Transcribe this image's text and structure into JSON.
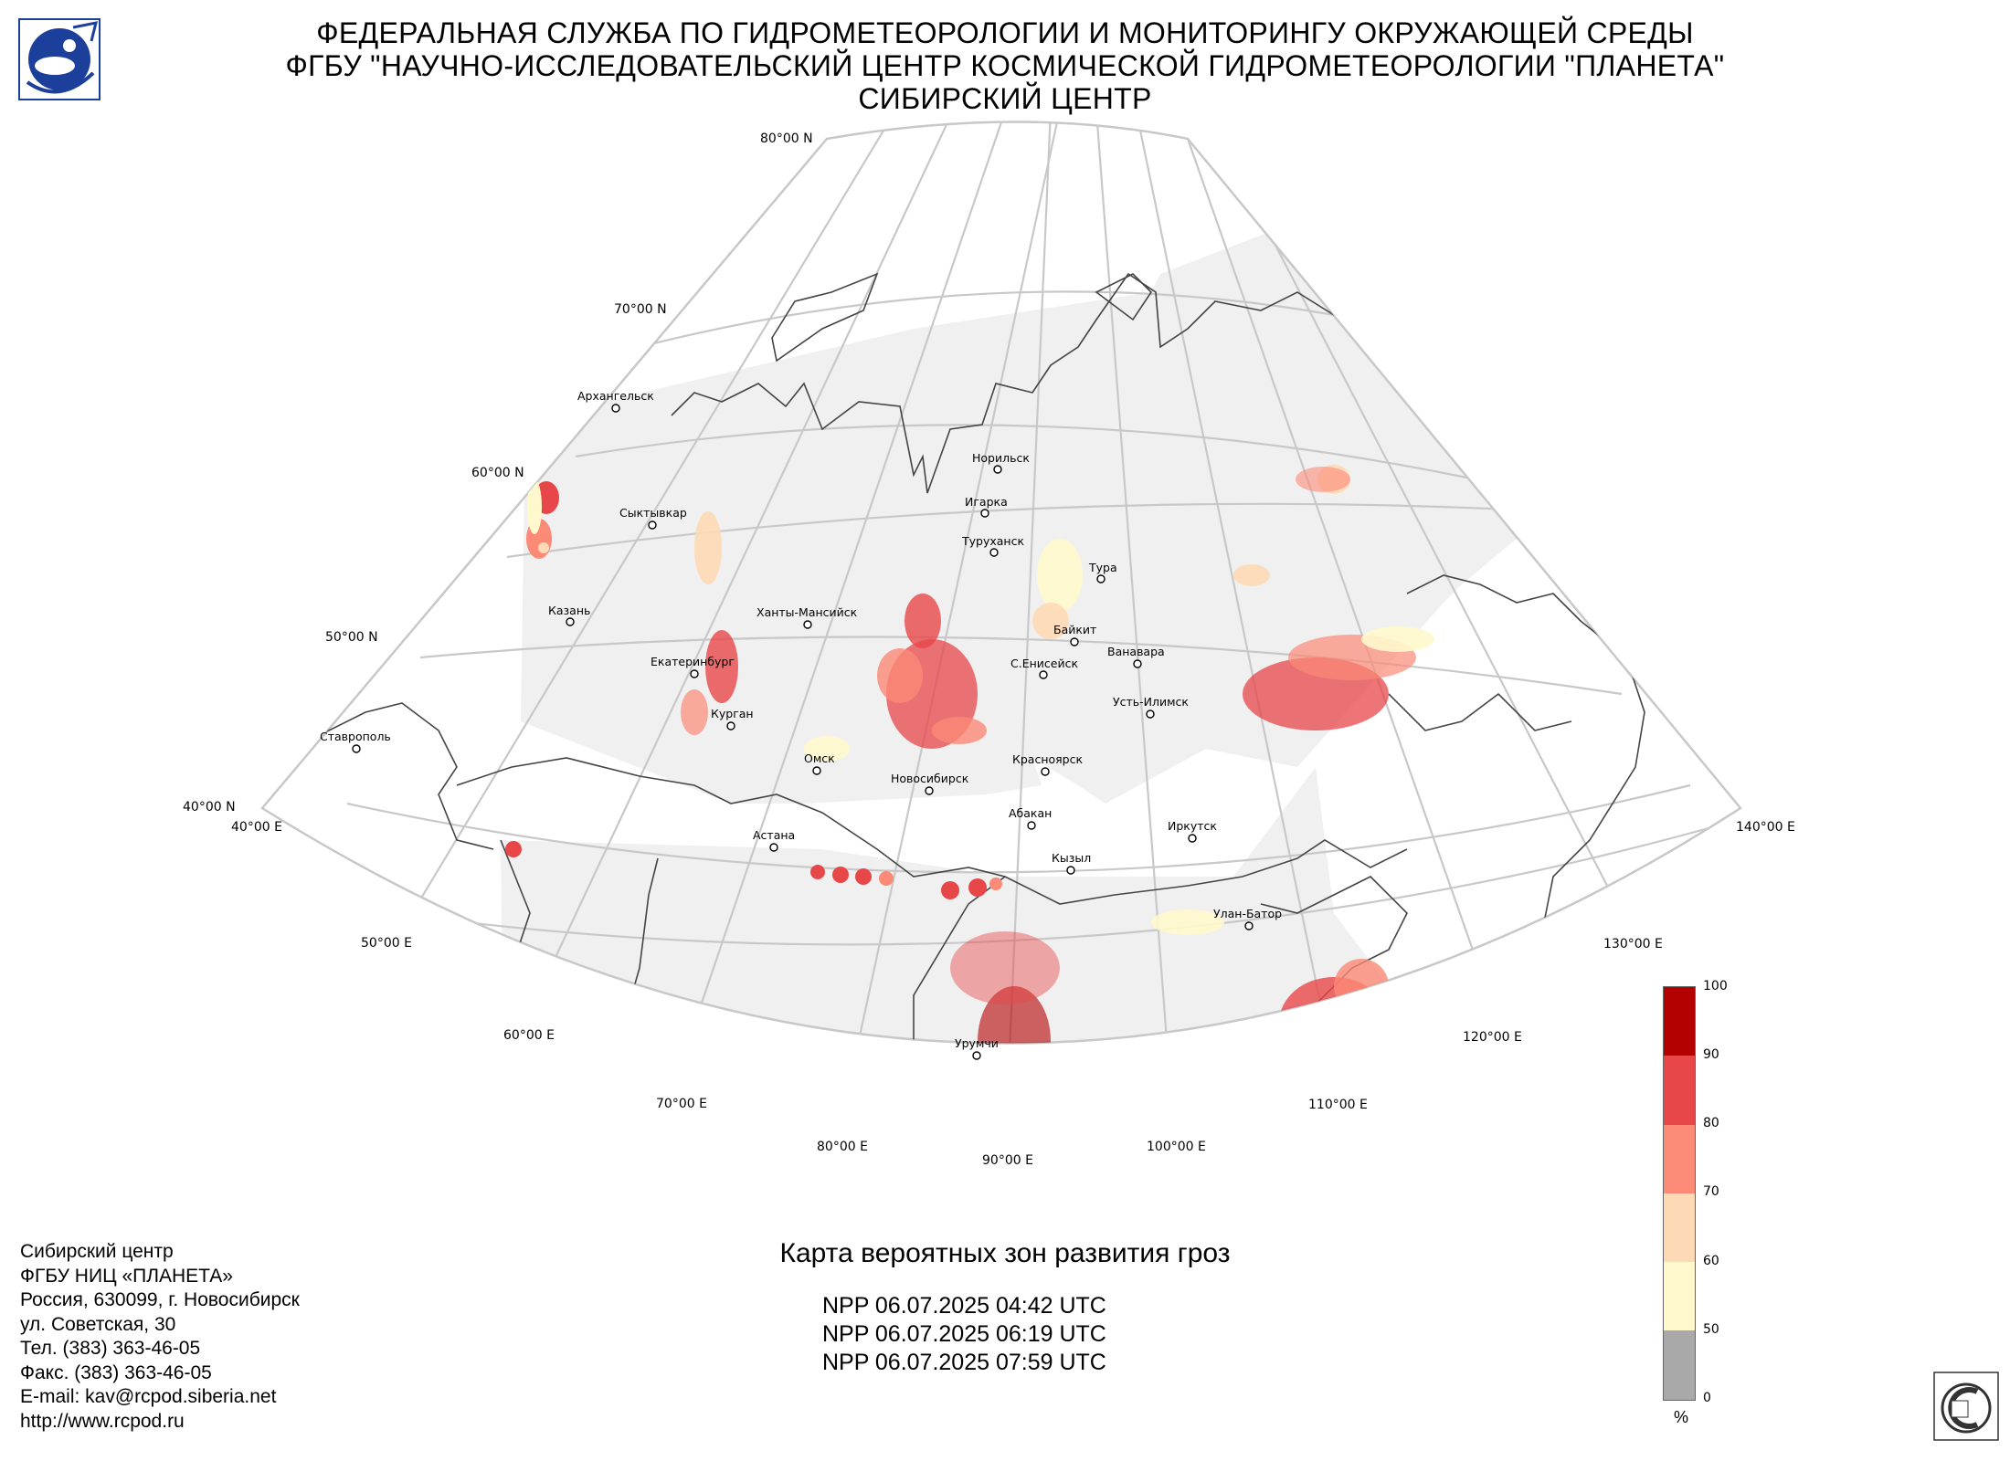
{
  "header": {
    "line1": "ФЕДЕРАЛЬНАЯ СЛУЖБА ПО ГИДРОМЕТЕОРОЛОГИИ И МОНИТОРИНГУ ОКРУЖАЮЩЕЙ СРЕДЫ",
    "line2": "ФГБУ \"НАУЧНО-ИССЛЕДОВАТЕЛЬСКИЙ ЦЕНТР КОСМИЧЕСКОЙ ГИДРОМЕТЕОРОЛОГИИ \"ПЛАНЕТА\"",
    "line3": "СИБИРСКИЙ ЦЕНТР"
  },
  "map": {
    "lat_labels": [
      "80°00 N",
      "70°00 N",
      "60°00 N",
      "50°00 N",
      "40°00 N"
    ],
    "lon_labels": [
      "40°00 E",
      "50°00 E",
      "60°00 E",
      "70°00 E",
      "80°00 E",
      "90°00 E",
      "100°00 E",
      "110°00 E",
      "120°00 E",
      "130°00 E",
      "140°00 E"
    ],
    "cities": [
      "Архангельск",
      "Норильск",
      "Игарка",
      "Туруханск",
      "Тура",
      "Сыктывкар",
      "Ханты-Мансийск",
      "Казань",
      "Байкит",
      "Ванавара",
      "С.Енисейск",
      "Екатеринбург",
      "Усть-Илимск",
      "Курган",
      "Ставрополь",
      "Омск",
      "Красноярск",
      "Новосибирск",
      "Абакан",
      "Иркутск",
      "Астана",
      "Кызыл",
      "Улан-Батор",
      "Урумчи"
    ],
    "colors": {
      "land": "#f0f0f0",
      "graticule": "#c8c8c8",
      "border": "#444444"
    }
  },
  "legend": {
    "ticks": [
      "100",
      "90",
      "80",
      "70",
      "60",
      "50",
      "0"
    ],
    "unit": "%",
    "colors": [
      "#b40000",
      "#e8474a",
      "#fb8a76",
      "#fed9b5",
      "#fff8cc",
      "#a9a9a9"
    ]
  },
  "caption": {
    "title": "Карта вероятных зон развития гроз",
    "passes": [
      "NPP 06.07.2025  04:42 UTC",
      "NPP 06.07.2025  06:19 UTC",
      "NPP 06.07.2025  07:59 UTC"
    ]
  },
  "contacts": [
    "Сибирский центр",
    "ФГБУ НИЦ «ПЛАНЕТА»",
    "Россия, 630099, г. Новосибирск",
    "ул. Советская, 30",
    "Тел. (383) 363-46-05",
    "Факс. (383) 363-46-05",
    "E-mail: kav@rcpod.siberia.net",
    "http://www.rcpod.ru"
  ]
}
